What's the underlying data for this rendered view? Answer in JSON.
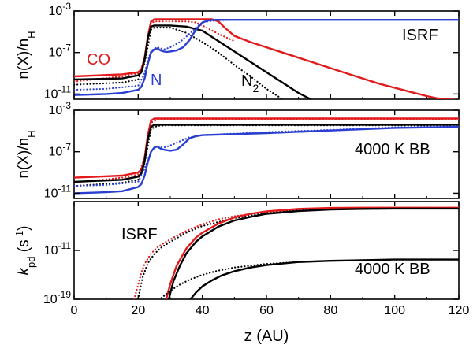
{
  "chart_data": {
    "type": "line",
    "x_label": "z (AU)",
    "x_range": [
      0,
      120
    ],
    "x_ticks": [
      "0",
      "20",
      "40",
      "60",
      "80",
      "100",
      "120"
    ],
    "panels": [
      {
        "id": "top",
        "y_label_main": "n(X)/n",
        "y_label_sub": "H",
        "y_range_log10": [
          -11.5,
          -3
        ],
        "y_ticks": [
          {
            "log": -3,
            "base": "10",
            "exp": "-3"
          },
          {
            "log": -7,
            "base": "10",
            "exp": "-7"
          },
          {
            "log": -11,
            "base": "10",
            "exp": "-11"
          }
        ],
        "annotations": [
          {
            "name": "label-co",
            "text": "CO",
            "color": "#e31a1c"
          },
          {
            "name": "label-n",
            "text": "N",
            "color": "#2a3fd1"
          },
          {
            "name": "label-n2",
            "text": "N",
            "sub": "2",
            "color": "#000000"
          },
          {
            "name": "label-isrf",
            "text": "ISRF",
            "color": "#000000"
          }
        ],
        "series": [
          {
            "name": "CO",
            "color": "#e31a1c",
            "style": "solid",
            "x": [
              0,
              15,
              20,
              21,
              22,
              23,
              24,
              25,
              30,
              35,
              40,
              43,
              45,
              47,
              50,
              55,
              60,
              65,
              70,
              75,
              80,
              85,
              90,
              95,
              100,
              105,
              110,
              113,
              116,
              120
            ],
            "y": [
              -9.3,
              -9.1,
              -8.9,
              -8.6,
              -7.5,
              -5.5,
              -4.0,
              -3.8,
              -3.8,
              -3.8,
              -3.8,
              -3.8,
              -4.0,
              -4.6,
              -5.4,
              -6.0,
              -6.5,
              -7.0,
              -7.5,
              -8.0,
              -8.5,
              -9.0,
              -9.5,
              -10.0,
              -10.4,
              -10.8,
              -11.2,
              -11.4,
              -11.5,
              -11.6
            ]
          },
          {
            "name": "CO",
            "color": "#e31a1c",
            "style": "dotted",
            "x": [
              0,
              15,
              20,
              21,
              22,
              23,
              24,
              25,
              30,
              35,
              38,
              40,
              45,
              50
            ],
            "y": [
              -9.8,
              -9.3,
              -9.0,
              -8.7,
              -7.6,
              -5.6,
              -4.2,
              -4.0,
              -4.0,
              -4.0,
              -4.1,
              -4.4,
              -5.2,
              -5.9
            ]
          },
          {
            "name": "N2",
            "color": "#000000",
            "style": "solid",
            "x": [
              0,
              15,
              20,
              21,
              22,
              23,
              24,
              25,
              30,
              35,
              40,
              45,
              50,
              55,
              60,
              65,
              70,
              75,
              80,
              82
            ],
            "y": [
              -9.6,
              -9.5,
              -9.2,
              -8.9,
              -7.7,
              -5.6,
              -4.5,
              -4.4,
              -4.4,
              -4.5,
              -4.9,
              -5.9,
              -6.9,
              -7.9,
              -8.9,
              -9.9,
              -10.9,
              -11.7,
              -12.5,
              -12.8
            ]
          },
          {
            "name": "N2",
            "color": "#000000",
            "style": "dotted",
            "x": [
              0,
              15,
              20,
              22,
              24,
              25,
              30,
              35,
              40,
              45,
              50,
              55,
              60,
              65,
              70
            ],
            "y": [
              -10.1,
              -9.9,
              -9.6,
              -8.0,
              -4.8,
              -4.6,
              -4.6,
              -5.1,
              -6.0,
              -7.0,
              -8.2,
              -9.3,
              -10.5,
              -11.5,
              -12.5
            ]
          },
          {
            "name": "N",
            "color": "#2a3fd1",
            "style": "solid",
            "x": [
              0,
              10,
              15,
              20,
              21,
              22,
              23,
              24,
              25,
              26,
              27,
              28,
              29,
              30,
              32,
              34,
              36,
              38,
              40,
              42,
              44,
              50,
              60,
              80,
              100,
              120
            ],
            "y": [
              -11.1,
              -11.0,
              -10.9,
              -10.6,
              -10.3,
              -9.5,
              -8.1,
              -7.0,
              -6.7,
              -6.6,
              -6.8,
              -6.9,
              -6.95,
              -6.9,
              -6.8,
              -6.5,
              -5.8,
              -4.8,
              -4.1,
              -3.9,
              -3.85,
              -3.85,
              -3.85,
              -3.85,
              -3.85,
              -3.85
            ]
          },
          {
            "name": "N",
            "color": "#2a3fd1",
            "style": "dotted",
            "x": [
              0,
              10,
              20,
              22,
              23,
              24,
              25,
              26,
              28,
              30,
              33,
              36,
              38,
              40,
              44,
              50
            ],
            "y": [
              -10.6,
              -10.5,
              -10.2,
              -9.0,
              -7.8,
              -6.9,
              -6.6,
              -6.5,
              -6.7,
              -6.5,
              -6.0,
              -5.2,
              -4.6,
              -4.1,
              -3.9,
              -3.85
            ]
          }
        ]
      },
      {
        "id": "middle",
        "y_label_main": "n(X)/n",
        "y_label_sub": "H",
        "y_range_log10": [
          -11.5,
          -3
        ],
        "y_ticks": [
          {
            "log": -3,
            "base": "10",
            "exp": "-3"
          },
          {
            "log": -7,
            "base": "10",
            "exp": "-7"
          },
          {
            "log": -11,
            "base": "10",
            "exp": "-11"
          }
        ],
        "annotations": [
          {
            "name": "label-4000k-bb-middle",
            "text": "4000 K BB",
            "color": "#000000"
          }
        ],
        "series": [
          {
            "name": "CO",
            "color": "#e31a1c",
            "style": "solid",
            "x": [
              0,
              15,
              20,
              21,
              22,
              23,
              24,
              25,
              30,
              60,
              90,
              120
            ],
            "y": [
              -9.5,
              -9.3,
              -9.0,
              -8.7,
              -7.6,
              -5.4,
              -4.0,
              -3.8,
              -3.8,
              -3.8,
              -3.8,
              -3.8
            ]
          },
          {
            "name": "CO",
            "color": "#e31a1c",
            "style": "dotted",
            "x": [
              0,
              15,
              20,
              22,
              24,
              26,
              30,
              60,
              90,
              120
            ],
            "y": [
              -10.0,
              -9.5,
              -9.2,
              -7.6,
              -4.2,
              -3.9,
              -3.85,
              -3.85,
              -3.85,
              -3.85
            ]
          },
          {
            "name": "N2",
            "color": "#000000",
            "style": "solid",
            "x": [
              0,
              15,
              20,
              21,
              22,
              23,
              24,
              25,
              30,
              60,
              90,
              120
            ],
            "y": [
              -9.9,
              -9.7,
              -9.4,
              -9.1,
              -7.9,
              -5.8,
              -4.6,
              -4.4,
              -4.4,
              -4.4,
              -4.4,
              -4.4
            ]
          },
          {
            "name": "N2",
            "color": "#000000",
            "style": "dotted",
            "x": [
              0,
              15,
              20,
              22,
              24,
              26,
              30,
              60,
              90,
              120
            ],
            "y": [
              -10.3,
              -10.0,
              -9.7,
              -8.1,
              -4.8,
              -4.5,
              -4.45,
              -4.45,
              -4.45,
              -4.45
            ]
          },
          {
            "name": "N",
            "color": "#2a3fd1",
            "style": "solid",
            "x": [
              0,
              10,
              15,
              20,
              21,
              22,
              23,
              24,
              25,
              26,
              27,
              28,
              30,
              32,
              34,
              36,
              38,
              40,
              60,
              80,
              100,
              120
            ],
            "y": [
              -11.0,
              -10.9,
              -10.8,
              -10.4,
              -10.1,
              -9.3,
              -8.0,
              -7.0,
              -6.6,
              -6.5,
              -6.7,
              -6.8,
              -6.9,
              -6.8,
              -6.3,
              -5.7,
              -5.5,
              -5.4,
              -5.2,
              -4.95,
              -4.7,
              -4.6
            ]
          },
          {
            "name": "N",
            "color": "#2a3fd1",
            "style": "dotted",
            "x": [
              0,
              10,
              20,
              22,
              24,
              25,
              26,
              28,
              30,
              33,
              36,
              40,
              60,
              80,
              100,
              120
            ],
            "y": [
              -10.3,
              -10.2,
              -9.9,
              -8.6,
              -7.0,
              -6.6,
              -6.5,
              -6.6,
              -6.4,
              -6.0,
              -5.6,
              -5.4,
              -5.1,
              -4.9,
              -4.65,
              -4.55
            ]
          }
        ]
      },
      {
        "id": "bottom",
        "y_label_main": "k",
        "y_label_sub": "pd",
        "y_label_units": " (s",
        "y_label_units_exp": "-1",
        "y_label_close": ")",
        "y_range_log10": [
          -19,
          -3
        ],
        "y_ticks": [
          {
            "log": -11,
            "base": "10",
            "exp": "-11"
          },
          {
            "log": -19,
            "base": "10",
            "exp": "-19"
          }
        ],
        "annotations": [
          {
            "name": "label-isrf-bottom",
            "text": "ISRF",
            "color": "#000000"
          },
          {
            "name": "label-4000k-bb-bottom",
            "text": "4000 K BB",
            "color": "#000000"
          }
        ],
        "series": [
          {
            "name": "CO ISRF",
            "color": "#e31a1c",
            "style": "dotted",
            "x": [
              18.5,
              19,
              20,
              21,
              22,
              24,
              26,
              28,
              30,
              32,
              35,
              40,
              45,
              50,
              60,
              70,
              80,
              90,
              100,
              120
            ],
            "y": [
              -19.5,
              -18.5,
              -16.6,
              -14.6,
              -13.2,
              -11.5,
              -10.5,
              -9.8,
              -9.2,
              -8.6,
              -7.8,
              -6.7,
              -5.9,
              -5.4,
              -4.7,
              -4.3,
              -4.05,
              -4.0,
              -4.0,
              -4.0
            ]
          },
          {
            "name": "N2 ISRF",
            "color": "#000000",
            "style": "dotted",
            "x": [
              19.8,
              20.5,
              21.5,
              23,
              25,
              27,
              30,
              35,
              40,
              50,
              60,
              70,
              80,
              90,
              100,
              120
            ],
            "y": [
              -19.5,
              -17.5,
              -15.2,
              -13.1,
              -11.6,
              -10.6,
              -9.6,
              -8.1,
              -7.0,
              -5.7,
              -4.9,
              -4.45,
              -4.25,
              -4.2,
              -4.15,
              -4.15
            ]
          },
          {
            "name": "CO BB",
            "color": "#e31a1c",
            "style": "solid",
            "x": [
              28.5,
              29,
              30,
              32,
              35,
              38,
              40,
              45,
              50,
              55,
              60,
              70,
              80,
              90,
              100,
              120
            ],
            "y": [
              -19.5,
              -18.5,
              -16.5,
              -13.5,
              -10.7,
              -8.9,
              -8.1,
              -6.6,
              -5.6,
              -5.0,
              -4.6,
              -4.2,
              -4.05,
              -4.0,
              -4.0,
              -4.0
            ]
          },
          {
            "name": "N2 BB",
            "color": "#000000",
            "style": "solid",
            "x": [
              29.3,
              30,
              31,
              33,
              35,
              38,
              40,
              45,
              50,
              55,
              60,
              70,
              80,
              90,
              100,
              120
            ],
            "y": [
              -19.5,
              -18.0,
              -16.0,
              -13.5,
              -11.5,
              -9.6,
              -8.7,
              -7.1,
              -6.1,
              -5.5,
              -5.0,
              -4.55,
              -4.3,
              -4.2,
              -4.15,
              -4.15
            ]
          },
          {
            "name": "N ISRF",
            "color": "#000000",
            "style": "dotted",
            "x": [
              25.8,
              27,
              30,
              33,
              36,
              40,
              45,
              50,
              60,
              70,
              80,
              90,
              100,
              110,
              120
            ],
            "y": [
              -19.5,
              -18.9,
              -17.6,
              -16.6,
              -15.8,
              -15.0,
              -14.3,
              -13.8,
              -13.2,
              -12.9,
              -12.7,
              -12.6,
              -12.5,
              -12.5,
              -12.5
            ]
          },
          {
            "name": "N BB",
            "color": "#000000",
            "style": "solid",
            "x": [
              35.5,
              36,
              38,
              40,
              43,
              46,
              50,
              55,
              60,
              70,
              80,
              90,
              100,
              110,
              120
            ],
            "y": [
              -19.5,
              -19.2,
              -17.9,
              -16.9,
              -15.9,
              -15.1,
              -14.4,
              -13.8,
              -13.4,
              -12.9,
              -12.7,
              -12.6,
              -12.5,
              -12.5,
              -12.5
            ]
          }
        ]
      }
    ]
  }
}
